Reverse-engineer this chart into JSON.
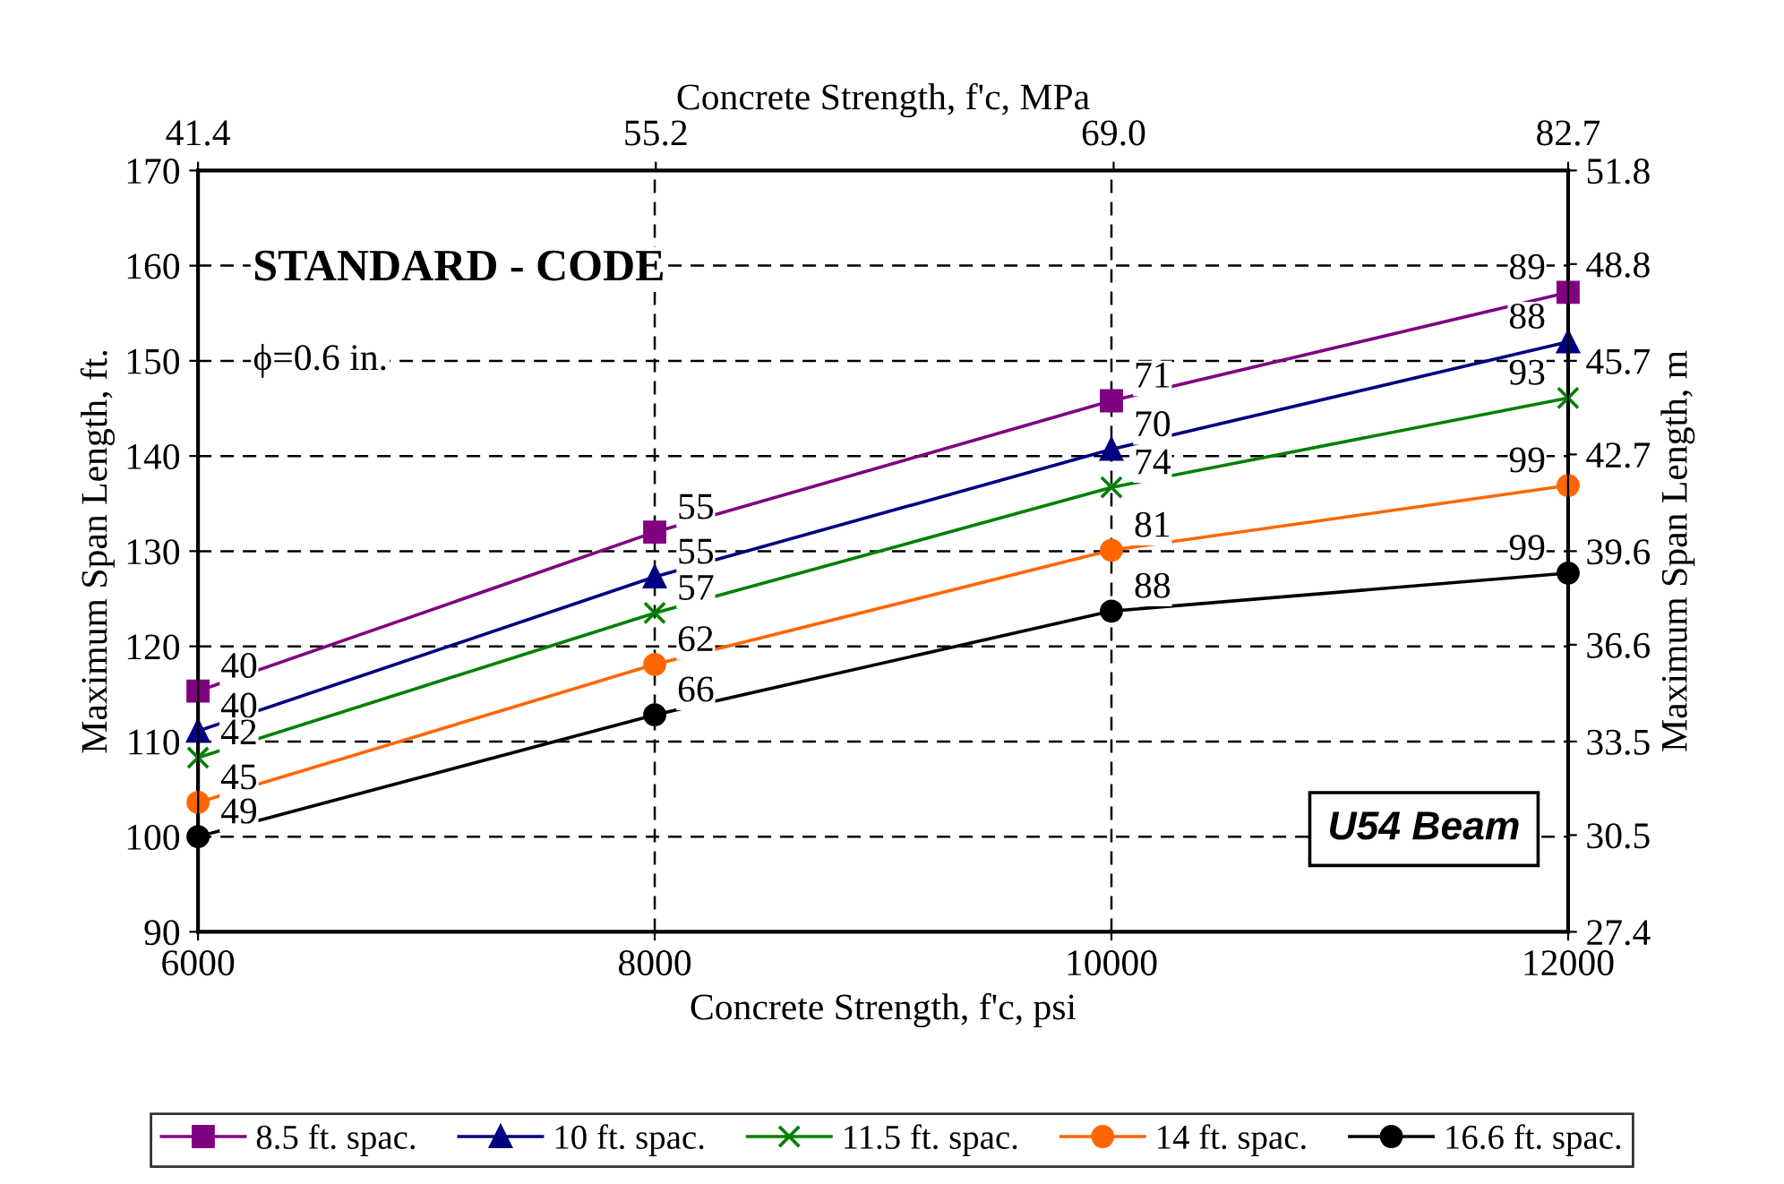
{
  "chart_data": {
    "type": "line",
    "xlabel": "Concrete Strength, f'c, psi",
    "ylabel": "Maximum Span Length, ft.",
    "y2label": "Maximum Span Length, m",
    "x2label": "Concrete Strength, f'c, MPa",
    "annotations": [
      "STANDARD - CODE",
      "ϕ=0.6 in.",
      "U54 Beam",
      {
        "text": "40",
        "x": 6000,
        "y": 115.3
      },
      {
        "text": "55",
        "x": 8000,
        "y": 132
      },
      {
        "text": "71",
        "x": 10000,
        "y": 145.8
      },
      {
        "text": "89",
        "x": 12000,
        "y": 157.2
      },
      {
        "text": "40",
        "x": 6000,
        "y": 111.1
      },
      {
        "text": "55",
        "x": 8000,
        "y": 127.3
      },
      {
        "text": "70",
        "x": 10000,
        "y": 140.7
      },
      {
        "text": "88",
        "x": 12000,
        "y": 152
      },
      {
        "text": "42",
        "x": 6000,
        "y": 108.3
      },
      {
        "text": "57",
        "x": 8000,
        "y": 123.5
      },
      {
        "text": "74",
        "x": 10000,
        "y": 136.7
      },
      {
        "text": "93",
        "x": 12000,
        "y": 146.1
      },
      {
        "text": "45",
        "x": 6000,
        "y": 103.6
      },
      {
        "text": "62",
        "x": 8000,
        "y": 118.1
      },
      {
        "text": "81",
        "x": 10000,
        "y": 130.1
      },
      {
        "text": "99",
        "x": 12000,
        "y": 136.9
      },
      {
        "text": "49",
        "x": 6000,
        "y": 100
      },
      {
        "text": "66",
        "x": 8000,
        "y": 112.8
      },
      {
        "text": "88",
        "x": 10000,
        "y": 123.7
      },
      {
        "text": "99",
        "x": 12000,
        "y": 127.7
      }
    ],
    "x": [
      6000,
      8000,
      10000,
      12000
    ],
    "xlim": [
      6000,
      12000
    ],
    "xticks": [
      6000,
      8000,
      10000,
      12000
    ],
    "ylim": [
      90,
      170
    ],
    "yticks": [
      90,
      100,
      110,
      120,
      130,
      140,
      150,
      160,
      170
    ],
    "x2lim": [
      41.4,
      82.7
    ],
    "x2ticks": [
      {
        "value": 41.4,
        "label": "41.4"
      },
      {
        "value": 55.2,
        "label": "55.2"
      },
      {
        "value": 69.0,
        "label": "69.0"
      },
      {
        "value": 82.7,
        "label": "82.7"
      }
    ],
    "y2lim": [
      27.4,
      51.8
    ],
    "y2ticks": [
      {
        "value": 27.4,
        "label": "27.4"
      },
      {
        "value": 30.5,
        "label": "30.5"
      },
      {
        "value": 33.5,
        "label": "33.5"
      },
      {
        "value": 36.6,
        "label": "36.6"
      },
      {
        "value": 39.6,
        "label": "39.6"
      },
      {
        "value": 42.7,
        "label": "42.7"
      },
      {
        "value": 45.7,
        "label": "45.7"
      },
      {
        "value": 48.8,
        "label": "48.8"
      },
      {
        "value": 51.8,
        "label": "51.8"
      }
    ],
    "grid": true,
    "legend": "bottom",
    "line_style": "solid",
    "series": [
      {
        "name": "8.5 ft. spac.",
        "color": "#800080",
        "marker": "square",
        "values": [
          115.3,
          132,
          145.8,
          157.2
        ]
      },
      {
        "name": "10 ft. spac.",
        "color": "#000080",
        "marker": "triangle",
        "values": [
          111.1,
          127.3,
          140.7,
          152
        ]
      },
      {
        "name": "11.5 ft. spac.",
        "color": "#008000",
        "marker": "cross",
        "values": [
          108.3,
          123.5,
          136.7,
          146.1
        ]
      },
      {
        "name": "14 ft. spac.",
        "color": "#ff6600",
        "marker": "circle",
        "values": [
          103.6,
          118.1,
          130.1,
          136.9
        ]
      },
      {
        "name": "16.6 ft. spac.",
        "color": "#000000",
        "marker": "circle",
        "values": [
          100,
          112.8,
          123.7,
          127.7
        ]
      }
    ]
  }
}
